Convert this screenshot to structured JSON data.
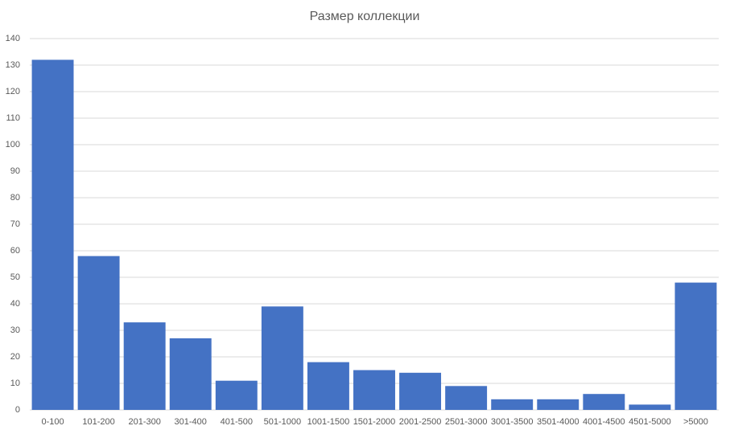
{
  "chart_data": {
    "type": "bar",
    "title": "Размер коллекции",
    "categories": [
      "0-100",
      "101-200",
      "201-300",
      "301-400",
      "401-500",
      "501-1000",
      "1001-1500",
      "1501-2000",
      "2001-2500",
      "2501-3000",
      "3001-3500",
      "3501-4000",
      "4001-4500",
      "4501-5000",
      ">5000"
    ],
    "values": [
      132,
      58,
      33,
      27,
      11,
      39,
      18,
      15,
      14,
      9,
      4,
      4,
      6,
      2,
      48
    ],
    "color": "#4472c4",
    "ylim": [
      0,
      140
    ],
    "yticks": [
      0,
      10,
      20,
      30,
      40,
      50,
      60,
      70,
      80,
      90,
      100,
      110,
      120,
      130,
      140
    ],
    "grid": true
  }
}
